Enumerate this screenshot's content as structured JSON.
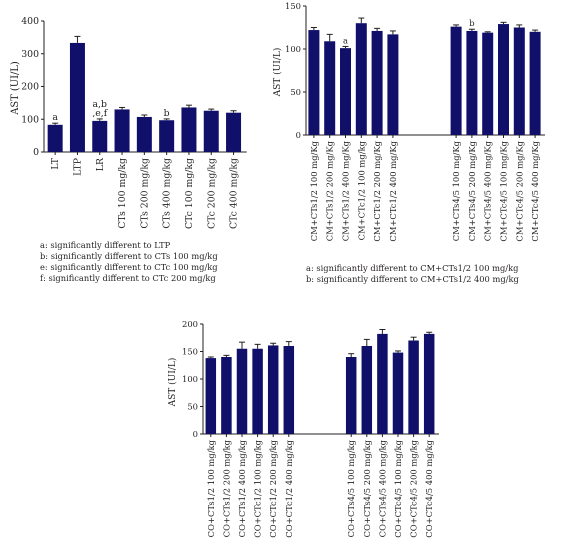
{
  "colors": {
    "bar": "#10106a",
    "axis": "#231f20",
    "error": "#231f20"
  },
  "chart_data": [
    {
      "type": "bar",
      "title": "",
      "xlabel": "",
      "ylabel": "AST (UI/L)",
      "ylim": [
        0,
        400
      ],
      "yticks": [
        0,
        100,
        200,
        300,
        400
      ],
      "grid": false,
      "categories": [
        "LT",
        "LTP",
        "LR",
        "CTs 100 mg/kg",
        "CTs 200 mg/kg",
        "CTs 400 mg/kg",
        "CTc 100 mg/kg",
        "CTc 200 mg/kg",
        "CTc 400 mg/kg"
      ],
      "values": [
        83,
        333,
        95,
        130,
        107,
        97,
        136,
        126,
        120
      ],
      "errors": [
        5,
        20,
        6,
        6,
        6,
        4,
        7,
        5,
        6
      ],
      "labels": [
        "a",
        "",
        "a,b\n,e,f",
        "",
        "",
        "b",
        "",
        "",
        ""
      ],
      "notes": [
        "a: significantly different to LTP",
        "b: significantly different to CTs 100 mg/kg",
        "e: significantly different to CTc 100 mg/kg",
        "f: significantly different to CTc 200 mg/kg"
      ]
    },
    {
      "type": "bar",
      "title": "",
      "xlabel": "",
      "ylabel": "AST (UI/L)",
      "ylim": [
        0,
        150
      ],
      "yticks": [
        0,
        50,
        100,
        150
      ],
      "grid": false,
      "categories": [
        "CM+CTs1/2 100 mg/Kg",
        "CM+CTs1/2 200 mg/Kg",
        "CM+CTs1/2 400 mg/Kg",
        "CM+CTc1/2 100 mg/kg",
        "CM+CTc1/2 200 mg/Kg",
        "CM+CTc1/2 400 mg/Kg",
        "",
        "",
        "",
        "CM+CTs4/5 100 mg/Kg",
        "CM+CTs4/5 200 mg/Kg",
        "CM+CTs4/5 400 mg/Kg",
        "CM+CTc4/5 100 mg/Kg",
        "CM+CTc4/5 200 mg/Kg",
        "CM+CTc4/5 400 mg/Kg"
      ],
      "values": [
        122,
        109,
        101,
        130,
        121,
        117,
        null,
        null,
        null,
        126,
        121,
        119,
        129,
        125,
        120
      ],
      "errors": [
        3,
        8,
        2,
        6,
        3,
        4,
        null,
        null,
        null,
        2,
        2,
        1,
        2,
        3,
        2
      ],
      "labels": [
        "",
        "",
        "a",
        "",
        "",
        "",
        "",
        "",
        "",
        "",
        "b",
        "",
        "",
        "",
        ""
      ],
      "notes": [
        "a: significantly different to CM+CTs1/2 100 mg/kg",
        "b: significantly different to CM+CTs1/2 400 mg/kg"
      ]
    },
    {
      "type": "bar",
      "title": "",
      "xlabel": "",
      "ylabel": "AST (UI/L)",
      "ylim": [
        0,
        200
      ],
      "yticks": [
        0,
        50,
        100,
        150,
        200
      ],
      "grid": false,
      "categories": [
        "CO+CTs1/2 100 mg/kg",
        "CO+CTs1/2 200 mg/kg",
        "CO+CTs1/2 400 mg/kg",
        "CO+CTc1/2 100 mg/kg",
        "CO+CTc1/2 200 mg/kg",
        "CO+CTc1/2 400 mg/kg",
        "",
        "",
        "",
        "CO+CTs4/5 100 mg/kg",
        "CO+CTs4/5 200 mg/kg",
        "CO+CTs4/5 400 mg/kg",
        "CO+CTc4/5 100 mg/kg",
        "CO+CTc4/5 200 mg/kg",
        "CO+CTc4/5 400 mg/kg"
      ],
      "values": [
        138,
        140,
        155,
        155,
        161,
        160,
        null,
        null,
        null,
        140,
        160,
        182,
        148,
        170,
        182
      ],
      "errors": [
        2,
        3,
        12,
        8,
        4,
        8,
        null,
        null,
        null,
        6,
        12,
        8,
        3,
        6,
        3
      ],
      "labels": [
        "",
        "",
        "",
        "",
        "",
        "",
        "",
        "",
        "",
        "",
        "",
        "",
        "",
        "",
        ""
      ],
      "notes": []
    }
  ]
}
